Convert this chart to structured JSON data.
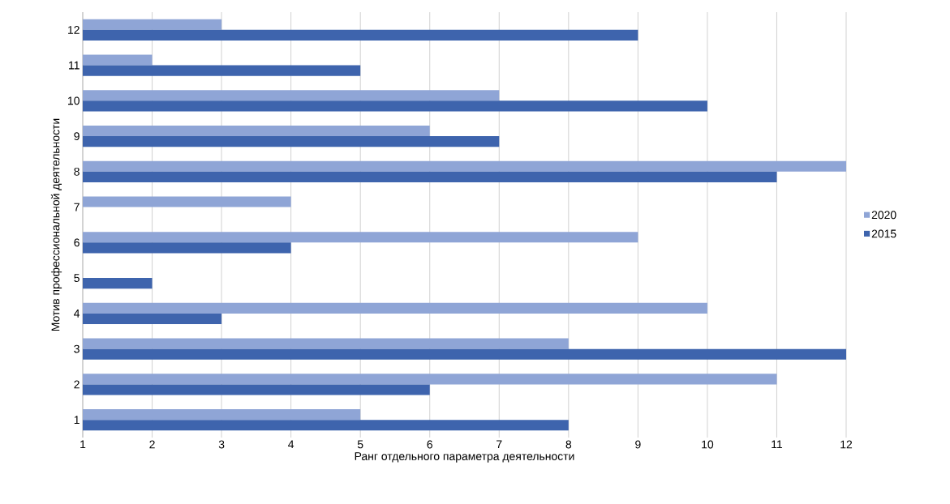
{
  "chart_data": {
    "type": "bar",
    "orientation": "horizontal",
    "xlabel": "Ранг отдельного параметра деятельности",
    "ylabel": "Мотив профессиональной деятельности",
    "categories": [
      "12",
      "11",
      "10",
      "9",
      "8",
      "7",
      "6",
      "5",
      "4",
      "3",
      "2",
      "1"
    ],
    "series": [
      {
        "name": "2020",
        "color": "#8fa5d6",
        "values": [
          3,
          2,
          7,
          6,
          12,
          4,
          9,
          1,
          10,
          8,
          11,
          5
        ]
      },
      {
        "name": "2015",
        "color": "#3e64ad",
        "values": [
          9,
          5,
          10,
          7,
          11,
          1,
          4,
          2,
          3,
          12,
          6,
          8
        ]
      }
    ],
    "xlim": [
      1,
      12
    ],
    "xticks": [
      1,
      2,
      3,
      4,
      5,
      6,
      7,
      8,
      9,
      10,
      11,
      12
    ],
    "grid": "x",
    "legend": "right"
  }
}
